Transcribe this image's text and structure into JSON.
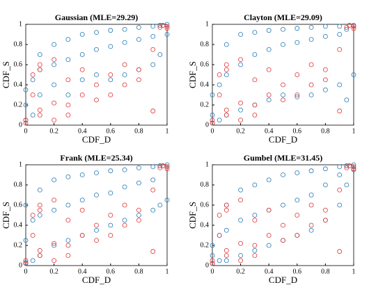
{
  "chart_data": [
    {
      "type": "scatter",
      "title": "Gaussian (MLE=29.29)",
      "xlabel": "CDF_D",
      "ylabel": "CDF_S",
      "xlim": [
        0,
        1
      ],
      "ylim": [
        0,
        1
      ],
      "xticks": [
        0,
        0.2,
        0.4,
        0.6,
        0.8,
        1
      ],
      "yticks": [
        0,
        0.2,
        0.4,
        0.6,
        0.8,
        1
      ],
      "series": [
        {
          "color": "#1f77b4",
          "x": [
            0,
            0,
            0,
            0.05,
            0.05,
            0.1,
            0.1,
            0.1,
            0.2,
            0.2,
            0.2,
            0.3,
            0.3,
            0.3,
            0.4,
            0.4,
            0.4,
            0.5,
            0.5,
            0.5,
            0.6,
            0.6,
            0.6,
            0.7,
            0.7,
            0.7,
            0.8,
            0.8,
            0.8,
            0.9,
            0.9,
            0.9,
            0.95,
            0.95,
            1,
            1
          ],
          "y": [
            0.05,
            0.2,
            0.35,
            0.1,
            0.45,
            0.3,
            0.55,
            0.7,
            0.4,
            0.6,
            0.8,
            0.3,
            0.65,
            0.85,
            0.45,
            0.7,
            0.9,
            0.5,
            0.75,
            0.92,
            0.45,
            0.78,
            0.94,
            0.5,
            0.82,
            0.95,
            0.55,
            0.85,
            0.97,
            0.6,
            0.88,
            0.98,
            0.7,
            0.99,
            0.9,
            1
          ]
        },
        {
          "color": "#e03030",
          "x": [
            0,
            0,
            0.05,
            0.05,
            0.1,
            0.1,
            0.1,
            0.1,
            0.2,
            0.2,
            0.2,
            0.3,
            0.3,
            0.3,
            0.4,
            0.4,
            0.5,
            0.5,
            0.6,
            0.6,
            0.7,
            0.7,
            0.8,
            0.8,
            0.9,
            0.9,
            0.95,
            0.97,
            1,
            1
          ],
          "y": [
            0.02,
            0.05,
            0.5,
            0.3,
            0.6,
            0.55,
            0.15,
            0.1,
            0.65,
            0.22,
            0.05,
            0.45,
            0.2,
            0.1,
            0.55,
            0.3,
            0.4,
            0.25,
            0.5,
            0.3,
            0.6,
            0.4,
            0.45,
            0.55,
            0.14,
            0.75,
            0.97,
            0.99,
            0.98,
            0.96
          ]
        }
      ]
    },
    {
      "type": "scatter",
      "title": "Clayton (MLE=29.09)",
      "xlabel": "CDF_D",
      "ylabel": "CDF_S",
      "xlim": [
        0,
        1
      ],
      "ylim": [
        0,
        1
      ],
      "xticks": [
        0,
        0.2,
        0.4,
        0.6,
        0.8,
        1
      ],
      "yticks": [
        0,
        0.2,
        0.4,
        0.6,
        0.8,
        1
      ],
      "series": [
        {
          "color": "#1f77b4",
          "x": [
            0,
            0,
            0,
            0.05,
            0.05,
            0.1,
            0.1,
            0.1,
            0.2,
            0.2,
            0.2,
            0.3,
            0.3,
            0.3,
            0.4,
            0.4,
            0.4,
            0.5,
            0.5,
            0.5,
            0.6,
            0.6,
            0.6,
            0.7,
            0.7,
            0.7,
            0.8,
            0.8,
            0.8,
            0.9,
            0.9,
            0.9,
            0.95,
            0.95,
            1,
            1
          ],
          "y": [
            0.02,
            0.1,
            0.3,
            0.05,
            0.4,
            0.1,
            0.5,
            0.8,
            0.15,
            0.6,
            0.9,
            0.2,
            0.7,
            0.92,
            0.25,
            0.75,
            0.94,
            0.3,
            0.8,
            0.95,
            0.28,
            0.82,
            0.96,
            0.3,
            0.85,
            0.97,
            0.35,
            0.88,
            0.98,
            0.4,
            0.9,
            0.98,
            0.25,
            0.95,
            0.5,
            0.99
          ]
        },
        {
          "color": "#e03030",
          "x": [
            0,
            0,
            0.05,
            0.05,
            0.1,
            0.1,
            0.1,
            0.1,
            0.2,
            0.2,
            0.2,
            0.3,
            0.3,
            0.3,
            0.4,
            0.4,
            0.5,
            0.5,
            0.6,
            0.6,
            0.7,
            0.7,
            0.8,
            0.8,
            0.9,
            0.9,
            0.95,
            0.97,
            1,
            1
          ],
          "y": [
            0.02,
            0.05,
            0.5,
            0.3,
            0.6,
            0.55,
            0.15,
            0.1,
            0.65,
            0.22,
            0.05,
            0.45,
            0.2,
            0.1,
            0.55,
            0.3,
            0.4,
            0.25,
            0.5,
            0.3,
            0.6,
            0.4,
            0.45,
            0.55,
            0.14,
            0.75,
            0.97,
            0.99,
            0.98,
            0.96
          ]
        }
      ]
    },
    {
      "type": "scatter",
      "title": "Frank (MLE=25.34)",
      "xlabel": "CDF_D",
      "ylabel": "CDF_S",
      "xlim": [
        0,
        1
      ],
      "ylim": [
        0,
        1
      ],
      "xticks": [
        0,
        0.2,
        0.4,
        0.6,
        0.8,
        1
      ],
      "yticks": [
        0,
        0.2,
        0.4,
        0.6,
        0.8,
        1
      ],
      "series": [
        {
          "color": "#1f77b4",
          "x": [
            0,
            0,
            0,
            0.05,
            0.05,
            0.1,
            0.1,
            0.1,
            0.2,
            0.2,
            0.2,
            0.3,
            0.3,
            0.3,
            0.4,
            0.4,
            0.4,
            0.5,
            0.5,
            0.5,
            0.6,
            0.6,
            0.6,
            0.7,
            0.7,
            0.7,
            0.8,
            0.8,
            0.8,
            0.9,
            0.9,
            0.9,
            0.95,
            0.95,
            1,
            1
          ],
          "y": [
            0.03,
            0.25,
            0.6,
            0.05,
            0.45,
            0.1,
            0.5,
            0.75,
            0.2,
            0.55,
            0.85,
            0.25,
            0.6,
            0.88,
            0.3,
            0.65,
            0.9,
            0.35,
            0.7,
            0.92,
            0.4,
            0.72,
            0.94,
            0.45,
            0.78,
            0.95,
            0.5,
            0.82,
            0.97,
            0.55,
            0.85,
            0.98,
            0.6,
            0.99,
            0.65,
            1
          ]
        },
        {
          "color": "#e03030",
          "x": [
            0,
            0,
            0.05,
            0.05,
            0.1,
            0.1,
            0.1,
            0.1,
            0.2,
            0.2,
            0.2,
            0.3,
            0.3,
            0.3,
            0.4,
            0.4,
            0.5,
            0.5,
            0.6,
            0.6,
            0.7,
            0.7,
            0.8,
            0.8,
            0.9,
            0.9,
            0.95,
            0.97,
            1,
            1
          ],
          "y": [
            0.02,
            0.05,
            0.5,
            0.3,
            0.6,
            0.55,
            0.15,
            0.1,
            0.65,
            0.22,
            0.05,
            0.45,
            0.2,
            0.1,
            0.55,
            0.3,
            0.4,
            0.25,
            0.5,
            0.3,
            0.6,
            0.4,
            0.45,
            0.55,
            0.14,
            0.75,
            0.97,
            0.99,
            0.98,
            0.96
          ]
        }
      ]
    },
    {
      "type": "scatter",
      "title": "Gumbel (MLE=31.45)",
      "xlabel": "CDF_D",
      "ylabel": "CDF_S",
      "xlim": [
        0,
        1
      ],
      "ylim": [
        0,
        1
      ],
      "xticks": [
        0,
        0.2,
        0.4,
        0.6,
        0.8,
        1
      ],
      "yticks": [
        0,
        0.2,
        0.4,
        0.6,
        0.8,
        1
      ],
      "series": [
        {
          "color": "#1f77b4",
          "x": [
            0,
            0,
            0,
            0.05,
            0.05,
            0.1,
            0.1,
            0.1,
            0.2,
            0.2,
            0.2,
            0.3,
            0.3,
            0.3,
            0.4,
            0.4,
            0.4,
            0.5,
            0.5,
            0.5,
            0.6,
            0.6,
            0.6,
            0.7,
            0.7,
            0.7,
            0.8,
            0.8,
            0.8,
            0.9,
            0.9,
            0.9,
            0.95,
            0.95,
            1,
            1
          ],
          "y": [
            0.02,
            0.1,
            0.2,
            0.05,
            0.3,
            0.05,
            0.35,
            0.6,
            0.1,
            0.45,
            0.75,
            0.15,
            0.5,
            0.8,
            0.2,
            0.55,
            0.85,
            0.25,
            0.6,
            0.9,
            0.3,
            0.65,
            0.92,
            0.35,
            0.7,
            0.94,
            0.45,
            0.8,
            0.96,
            0.6,
            0.9,
            0.98,
            0.8,
            0.99,
            0.95,
            1
          ]
        },
        {
          "color": "#e03030",
          "x": [
            0,
            0,
            0.05,
            0.05,
            0.1,
            0.1,
            0.1,
            0.1,
            0.2,
            0.2,
            0.2,
            0.3,
            0.3,
            0.3,
            0.4,
            0.4,
            0.5,
            0.5,
            0.6,
            0.6,
            0.7,
            0.7,
            0.8,
            0.8,
            0.9,
            0.9,
            0.95,
            0.97,
            1,
            1
          ],
          "y": [
            0.02,
            0.05,
            0.5,
            0.3,
            0.6,
            0.55,
            0.15,
            0.1,
            0.65,
            0.22,
            0.05,
            0.45,
            0.2,
            0.1,
            0.55,
            0.3,
            0.4,
            0.25,
            0.5,
            0.3,
            0.6,
            0.4,
            0.45,
            0.55,
            0.14,
            0.75,
            0.97,
            0.99,
            0.98,
            0.96
          ]
        }
      ]
    }
  ]
}
